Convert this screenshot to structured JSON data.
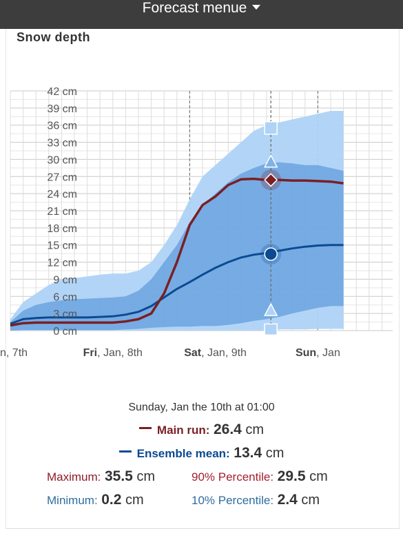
{
  "header": {
    "menu_label": "Forecast menue"
  },
  "panel": {
    "title": "Snow depth"
  },
  "chart_data": {
    "type": "area",
    "title": "Snow depth",
    "y_unit": "cm",
    "ylim": [
      0,
      42
    ],
    "y_ticks": [
      "42 cm",
      "39 cm",
      "36 cm",
      "33 cm",
      "30 cm",
      "27 cm",
      "24 cm",
      "21 cm",
      "18 cm",
      "15 cm",
      "12 cm",
      "9 cm",
      "6 cm",
      "3 cm",
      "0 cm"
    ],
    "x_labels": [
      {
        "bold": "",
        "rest": "n, 7th",
        "x": 0
      },
      {
        "bold": "Fri",
        "rest": ", Jan, 8th",
        "x": 24
      },
      {
        "bold": "Sat",
        "rest": ", Jan, 9th",
        "x": 48
      },
      {
        "bold": "Sun",
        "rest": ", Jan",
        "x": 72
      }
    ],
    "x_hours": [
      0,
      3,
      6,
      9,
      12,
      15,
      18,
      21,
      24,
      27,
      30,
      33,
      36,
      39,
      42,
      45,
      48,
      51,
      54,
      57,
      60,
      63,
      66,
      69,
      72,
      75,
      78
    ],
    "series": [
      {
        "name": "Maximum",
        "color": "#aed3f7",
        "values": [
          2,
          5,
          6.5,
          8,
          9,
          9.2,
          9.5,
          9.8,
          10,
          10,
          10.5,
          12,
          15,
          18.5,
          23,
          27,
          29,
          31,
          33,
          35,
          36,
          36.5,
          37,
          37.5,
          38,
          38.5,
          38.5
        ]
      },
      {
        "name": "90% Percentile",
        "color": "#7fb2e6",
        "values": [
          1.5,
          3.5,
          4.5,
          5,
          5.3,
          5.5,
          5.6,
          5.7,
          5.8,
          6,
          7,
          9,
          12,
          15,
          19,
          22,
          24,
          26,
          27.5,
          28.5,
          29.3,
          29.5,
          29.3,
          29,
          29,
          28.5,
          28
        ]
      },
      {
        "name": "10% Percentile",
        "color": "#7fb2e6",
        "values": [
          0,
          0.1,
          0.1,
          0.1,
          0.1,
          0.1,
          0.1,
          0.1,
          0.1,
          0.2,
          0.3,
          0.5,
          0.6,
          0.7,
          0.7,
          0.8,
          0.8,
          1,
          1.3,
          1.7,
          2,
          2.4,
          3,
          3.5,
          4,
          4.3,
          4.3
        ]
      },
      {
        "name": "Minimum",
        "color": "#aed3f7",
        "values": [
          0,
          0,
          0,
          0,
          0,
          0,
          0,
          0,
          0,
          0,
          0,
          0,
          0,
          0,
          0,
          0,
          0,
          0,
          0,
          0,
          0.1,
          0.2,
          0.2,
          0.2,
          0.3,
          0.3,
          0.3
        ]
      },
      {
        "name": "Ensemble mean",
        "color": "#0b4a92",
        "values": [
          1.2,
          2,
          2.2,
          2.3,
          2.3,
          2.3,
          2.3,
          2.4,
          2.5,
          2.8,
          3.3,
          4.3,
          5.8,
          7.3,
          8.5,
          9.8,
          11,
          12,
          12.8,
          13.3,
          13.6,
          14,
          14.4,
          14.7,
          14.9,
          15,
          15
        ]
      },
      {
        "name": "Main run",
        "color": "#7a1f23",
        "values": [
          0.9,
          1.3,
          1.4,
          1.4,
          1.4,
          1.4,
          1.4,
          1.4,
          1.4,
          1.6,
          2,
          3,
          6.5,
          12,
          18.5,
          22,
          23.5,
          25.5,
          26.5,
          26.6,
          26.4,
          26.4,
          26.3,
          26.3,
          26.2,
          26.1,
          25.8
        ]
      }
    ],
    "selected_hour": 61,
    "markers": {
      "max": 35.5,
      "p90": 29.5,
      "main": 26.4,
      "mean": 13.4,
      "p10": 2.4,
      "min": 0.2
    },
    "grid": true
  },
  "tooltip": {
    "timestamp": "Sunday, Jan the 10th at 01:00",
    "main_label": "Main run:",
    "main_value": "26.4",
    "main_unit": "cm",
    "mean_label": "Ensemble mean:",
    "mean_value": "13.4",
    "mean_unit": "cm",
    "max_label": "Maximum:",
    "max_value": "35.5",
    "max_unit": "cm",
    "p90_label": "90% Percentile:",
    "p90_value": "29.5",
    "p90_unit": "cm",
    "min_label": "Minimum:",
    "min_value": "0.2",
    "min_unit": "cm",
    "p10_label": "10% Percentile:",
    "p10_value": "2.4",
    "p10_unit": "cm"
  }
}
